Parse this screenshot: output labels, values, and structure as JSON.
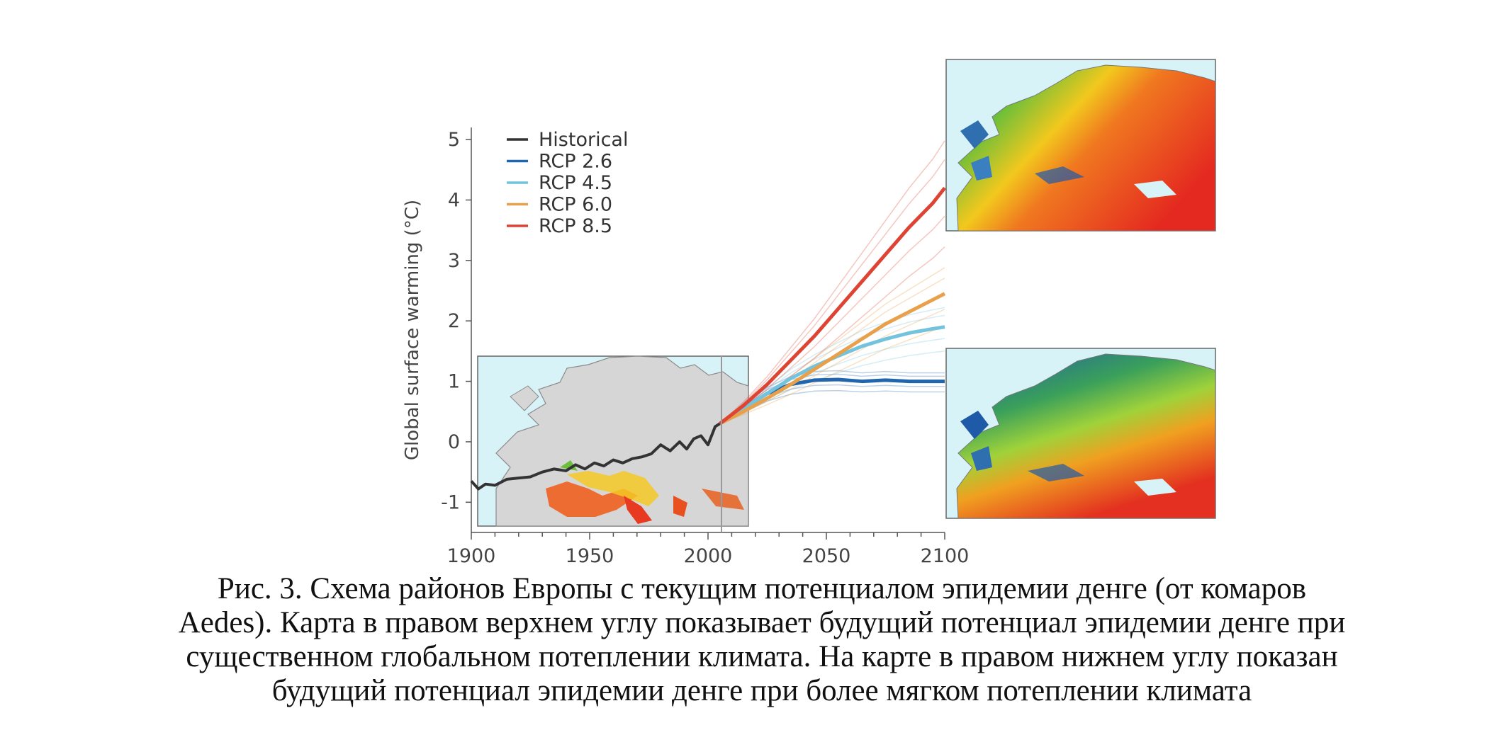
{
  "chart_data": {
    "type": "line",
    "ylabel": "Global surface warming (°C)",
    "xlim": [
      1900,
      2100
    ],
    "ylim": [
      -1.5,
      5.2
    ],
    "x_ticks": [
      "1900",
      "1950",
      "2000",
      "2050",
      "2100"
    ],
    "y_ticks": [
      "-1",
      "0",
      "1",
      "2",
      "3",
      "4",
      "5"
    ],
    "legend_position": "top-left",
    "series": [
      {
        "name": "Historical",
        "color": "#333333",
        "x": [
          1900,
          1903,
          1906,
          1910,
          1915,
          1920,
          1925,
          1930,
          1935,
          1940,
          1944,
          1948,
          1952,
          1956,
          1960,
          1964,
          1968,
          1972,
          1976,
          1980,
          1984,
          1988,
          1991,
          1994,
          1997,
          2000,
          2003,
          2005
        ],
        "y": [
          -0.65,
          -0.78,
          -0.7,
          -0.72,
          -0.62,
          -0.6,
          -0.58,
          -0.5,
          -0.45,
          -0.48,
          -0.38,
          -0.45,
          -0.35,
          -0.4,
          -0.3,
          -0.35,
          -0.28,
          -0.25,
          -0.2,
          -0.05,
          -0.15,
          0.0,
          -0.12,
          0.05,
          0.1,
          -0.05,
          0.25,
          0.3
        ]
      },
      {
        "name": "RCP 2.6",
        "color": "#2166ac",
        "x": [
          2005,
          2015,
          2025,
          2035,
          2045,
          2055,
          2065,
          2075,
          2085,
          2095,
          2100
        ],
        "y": [
          0.3,
          0.55,
          0.8,
          0.95,
          1.02,
          1.03,
          1.0,
          1.02,
          1.0,
          1.0,
          1.0
        ]
      },
      {
        "name": "RCP 4.5",
        "color": "#74c3dd",
        "x": [
          2005,
          2015,
          2025,
          2035,
          2045,
          2055,
          2065,
          2075,
          2085,
          2095,
          2100
        ],
        "y": [
          0.3,
          0.55,
          0.8,
          1.05,
          1.25,
          1.42,
          1.58,
          1.7,
          1.8,
          1.87,
          1.9
        ]
      },
      {
        "name": "RCP 6.0",
        "color": "#e8a04a",
        "x": [
          2005,
          2015,
          2025,
          2035,
          2045,
          2055,
          2065,
          2075,
          2085,
          2095,
          2100
        ],
        "y": [
          0.3,
          0.5,
          0.72,
          0.95,
          1.2,
          1.45,
          1.7,
          1.95,
          2.15,
          2.35,
          2.45
        ]
      },
      {
        "name": "RCP 8.5",
        "color": "#dd4433",
        "x": [
          2005,
          2015,
          2025,
          2035,
          2045,
          2055,
          2065,
          2075,
          2085,
          2095,
          2100
        ],
        "y": [
          0.3,
          0.6,
          0.95,
          1.35,
          1.75,
          2.2,
          2.65,
          3.1,
          3.55,
          3.95,
          4.2
        ]
      }
    ]
  },
  "caption": {
    "line1": "Рис. 3. Схема районов Европы с текущим потенциалом эпидемии денге (от комаров",
    "line2": "Aedes). Карта в правом верхнем углу показывает будущий потенциал эпидемии денге при",
    "line3": "существенном глобальном потеплении климата. На карте в правом нижнем углу показан",
    "line4": "будущий потенциал эпидемии денге при более мягком потеплении климата"
  }
}
